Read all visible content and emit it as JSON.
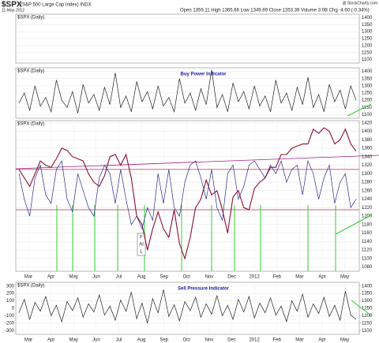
{
  "header": {
    "symbol": "$SPX",
    "name": "(S&P 500 Large Cap Index) INDX",
    "date": "11-May-2012",
    "quote": "Open 1359.11  High 1365.66  Low 1349.89  Close 1353.39  Volume 3.0B  Chg -4.60 (-0.34%)",
    "source": "@ StockCharts.com"
  },
  "chart_data": [
    {
      "type": "line",
      "panel_label": "$SPX (Daily)",
      "ylim": [
        1075,
        1425
      ],
      "yticks": [
        1100,
        1150,
        1200,
        1250,
        1300,
        1350,
        1400
      ],
      "series": []
    },
    {
      "type": "line",
      "panel_label": "$SPX (Daily)",
      "title": "Buy Power Indicator",
      "ylim": [
        1075,
        1425
      ],
      "yticks": [
        1100,
        1150,
        1200,
        1250,
        1300,
        1350,
        1400
      ],
      "series": [
        {
          "color": "#222222",
          "values": [
            1180,
            1250,
            1130,
            1300,
            1160,
            1220,
            1120,
            1340,
            1200,
            1150,
            1260,
            1110,
            1310,
            1180,
            1240,
            1130,
            1290,
            1170,
            1390,
            1150,
            1230,
            1120,
            1330,
            1190,
            1260,
            1140,
            1300,
            1160,
            1220,
            1120,
            1350,
            1180,
            1250,
            1130,
            1280,
            1170,
            1410,
            1150,
            1240,
            1120,
            1320,
            1190,
            1260,
            1140,
            1300,
            1160,
            1230,
            1120,
            1340,
            1180,
            1250,
            1130,
            1290,
            1170,
            1360,
            1150,
            1240,
            1120,
            1310,
            1190,
            1270,
            1140,
            1300,
            1200
          ]
        }
      ]
    },
    {
      "type": "line",
      "panel_label": "$SPX (Daily)",
      "ylim": [
        1070,
        1425
      ],
      "yticks": [
        1080,
        1100,
        1120,
        1140,
        1160,
        1180,
        1200,
        1220,
        1240,
        1260,
        1280,
        1300,
        1320,
        1340,
        1360,
        1380,
        1400,
        1420
      ],
      "months": [
        "Mar",
        "Apr",
        "May",
        "Jun",
        "Jul",
        "Aug",
        "Sep",
        "Oct",
        "Nov",
        "Dec",
        "2012",
        "Feb",
        "Mar",
        "Apr",
        "May"
      ],
      "reference_lines": [
        {
          "value": 1310,
          "color": "#b03050"
        },
        {
          "value": 1215,
          "color": "#b03050"
        }
      ],
      "annotation": [
        "F",
        "Al",
        "L"
      ],
      "series": [
        {
          "color": "#8b1030",
          "values": [
            1310,
            1290,
            1270,
            1300,
            1330,
            1320,
            1315,
            1335,
            1360,
            1355,
            1340,
            1335,
            1330,
            1300,
            1280,
            1270,
            1295,
            1340,
            1345,
            1320,
            1345,
            1290,
            1200,
            1180,
            1120,
            1170,
            1210,
            1170,
            1150,
            1215,
            1135,
            1100,
            1150,
            1220,
            1240,
            1285,
            1250,
            1260,
            1215,
            1160,
            1245,
            1260,
            1220,
            1215,
            1265,
            1280,
            1290,
            1315,
            1315,
            1345,
            1345,
            1360,
            1365,
            1370,
            1370,
            1405,
            1395,
            1408,
            1400,
            1370,
            1380,
            1405,
            1370,
            1353
          ]
        },
        {
          "color": "#2a2a90",
          "values": [
            1300,
            1240,
            1200,
            1290,
            1320,
            1250,
            1230,
            1310,
            1330,
            1240,
            1210,
            1300,
            1260,
            1220,
            1200,
            1290,
            1320,
            1300,
            1230,
            1310,
            1240,
            1180,
            1200,
            1170,
            1220,
            1190,
            1300,
            1230,
            1310,
            1220,
            1200,
            1280,
            1320,
            1330,
            1290,
            1240,
            1310,
            1220,
            1190,
            1300,
            1320,
            1240,
            1270,
            1320,
            1330,
            1310,
            1290,
            1320,
            1300,
            1330,
            1280,
            1310,
            1320,
            1250,
            1330,
            1300,
            1240,
            1290,
            1320,
            1230,
            1280,
            1300,
            1220,
            1240
          ]
        }
      ]
    },
    {
      "type": "line",
      "panel_label": "$SPX (Daily)",
      "title": "Sell Pressure Indicator",
      "ylim": [
        -350,
        350
      ],
      "yticks": [
        -300,
        -200,
        -100,
        0,
        100,
        200,
        300
      ],
      "y2lim": [
        1075,
        1425
      ],
      "y2ticks": [
        1100,
        1150,
        1200,
        1250,
        1300,
        1350,
        1400
      ],
      "months": [
        "Mar",
        "Apr",
        "May",
        "Jun",
        "Jul",
        "Aug",
        "Sep",
        "Oct",
        "Nov",
        "Dec",
        "2012",
        "Feb",
        "Mar",
        "Apr",
        "May"
      ],
      "series": [
        {
          "color": "#222222",
          "values": [
            -60,
            120,
            -150,
            80,
            -40,
            160,
            -100,
            40,
            -180,
            90,
            -30,
            140,
            -120,
            60,
            -50,
            180,
            -90,
            30,
            -160,
            110,
            -40,
            220,
            -140,
            70,
            -200,
            130,
            -60,
            250,
            -110,
            50,
            -170,
            90,
            -30,
            150,
            -120,
            60,
            -80,
            170,
            -100,
            40,
            -150,
            120,
            -50,
            160,
            -130,
            70,
            -60,
            140,
            -90,
            30,
            -180,
            100,
            -40,
            190,
            -120,
            60,
            -70,
            150,
            -110,
            40,
            -160,
            230,
            -90,
            -150
          ]
        }
      ]
    }
  ]
}
